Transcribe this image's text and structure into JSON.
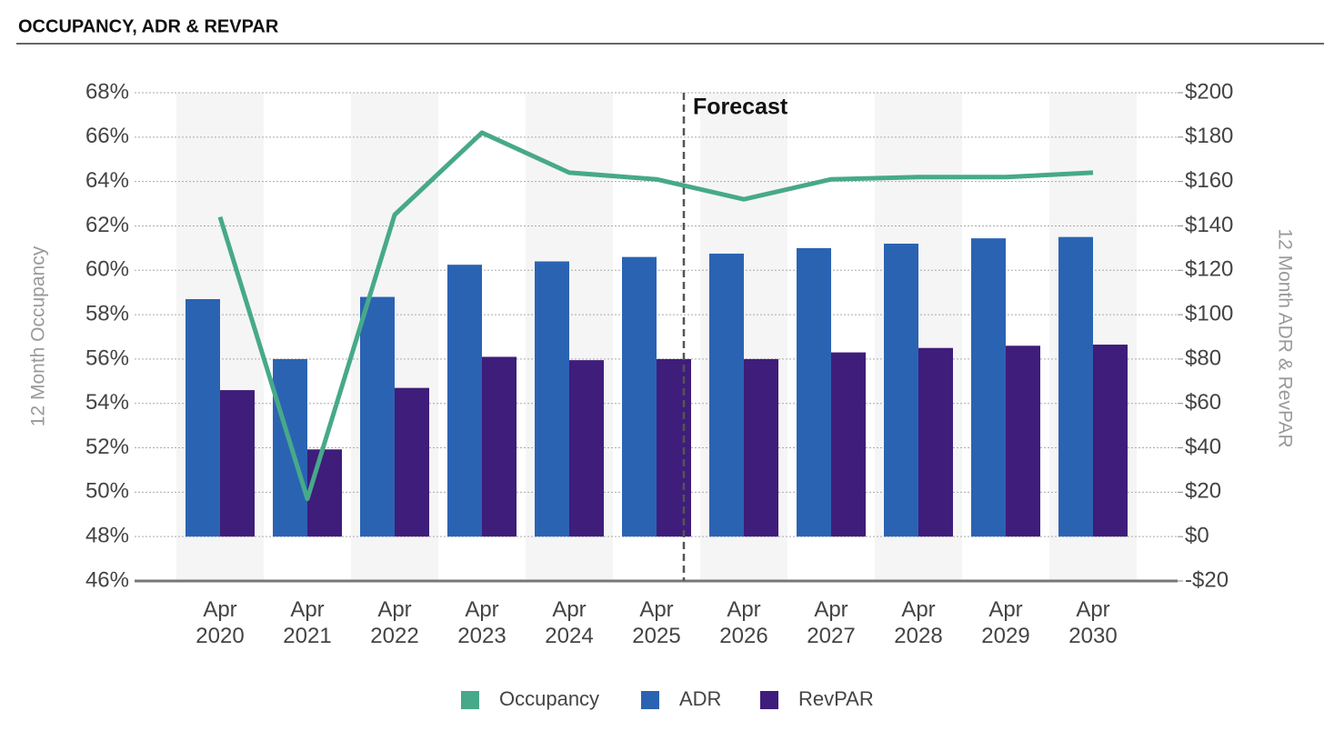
{
  "chart_data": {
    "type": "bar-line",
    "title": "OCCUPANCY, ADR & REVPAR",
    "ylabel": "12 Month Occupancy",
    "y2label": "12 Month ADR & RevPAR",
    "annotation": "Forecast",
    "categories": [
      "Apr 2020",
      "Apr 2021",
      "Apr 2022",
      "Apr 2023",
      "Apr 2024",
      "Apr 2025",
      "Apr 2026",
      "Apr 2027",
      "Apr 2028",
      "Apr 2029",
      "Apr 2030"
    ],
    "series": [
      {
        "name": "Occupancy",
        "type": "line",
        "color": "#47a98a",
        "values": [
          62.4,
          49.7,
          62.5,
          66.2,
          64.4,
          64.1,
          63.2,
          64.1,
          64.2,
          64.2,
          64.4
        ]
      },
      {
        "name": "ADR",
        "type": "bar",
        "axis": "y2",
        "color": "#2b63b3",
        "values": [
          107,
          80,
          108,
          122.5,
          124,
          126,
          127.5,
          130,
          132,
          134.4,
          135
        ]
      },
      {
        "name": "RevPAR",
        "type": "bar",
        "axis": "y2",
        "color": "#3f1d7a",
        "values": [
          66,
          39.3,
          67,
          81,
          79.5,
          80,
          80,
          83,
          85,
          86,
          86.5
        ]
      }
    ],
    "ylim": [
      46,
      68
    ],
    "yticks": [
      {
        "value": 46,
        "label": "46%"
      },
      {
        "value": 48,
        "label": "48%"
      },
      {
        "value": 50,
        "label": "50%"
      },
      {
        "value": 52,
        "label": "52%"
      },
      {
        "value": 54,
        "label": "54%"
      },
      {
        "value": 56,
        "label": "56%"
      },
      {
        "value": 58,
        "label": "58%"
      },
      {
        "value": 60,
        "label": "60%"
      },
      {
        "value": 62,
        "label": "62%"
      },
      {
        "value": 64,
        "label": "64%"
      },
      {
        "value": 66,
        "label": "66%"
      },
      {
        "value": 68,
        "label": "68%"
      }
    ],
    "y2lim": [
      -20,
      200
    ],
    "y2ticks": [
      {
        "value": -20,
        "label": "-$20"
      },
      {
        "value": 0,
        "label": "$0"
      },
      {
        "value": 20,
        "label": "$20"
      },
      {
        "value": 40,
        "label": "$40"
      },
      {
        "value": 60,
        "label": "$60"
      },
      {
        "value": 80,
        "label": "$80"
      },
      {
        "value": 100,
        "label": "$100"
      },
      {
        "value": 120,
        "label": "$120"
      },
      {
        "value": 140,
        "label": "$140"
      },
      {
        "value": 160,
        "label": "$160"
      },
      {
        "value": 180,
        "label": "$180"
      },
      {
        "value": 200,
        "label": "$200"
      }
    ],
    "grid": true,
    "legend": "bottom"
  }
}
